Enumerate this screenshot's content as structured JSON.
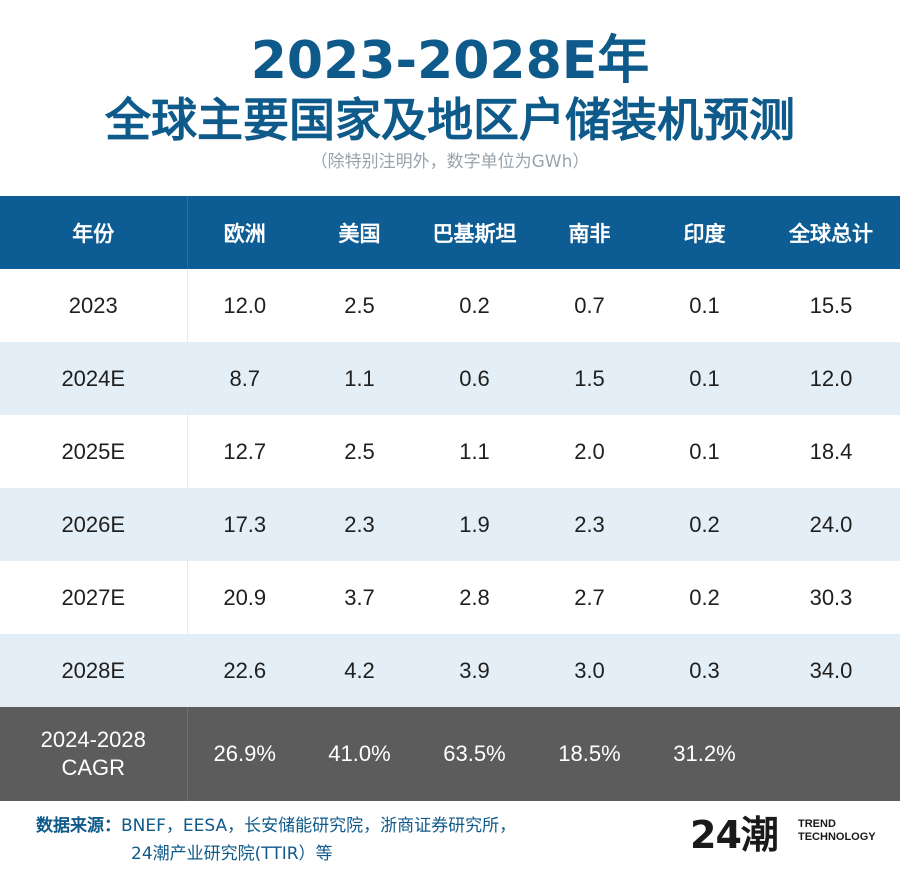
{
  "title_line1": "2023-2028E年",
  "title_line2": "全球主要国家及地区户储装机预测",
  "subtitle": "（除特别注明外，数字单位为GWh）",
  "chart_data": {
    "type": "table",
    "columns": [
      "年份",
      "欧洲",
      "美国",
      "巴基斯坦",
      "南非",
      "印度",
      "全球总计"
    ],
    "rows": [
      [
        "2023",
        "12.0",
        "2.5",
        "0.2",
        "0.7",
        "0.1",
        "15.5"
      ],
      [
        "2024E",
        "8.7",
        "1.1",
        "0.6",
        "1.5",
        "0.1",
        "12.0"
      ],
      [
        "2025E",
        "12.7",
        "2.5",
        "1.1",
        "2.0",
        "0.1",
        "18.4"
      ],
      [
        "2026E",
        "17.3",
        "2.3",
        "1.9",
        "2.3",
        "0.2",
        "24.0"
      ],
      [
        "2027E",
        "20.9",
        "3.7",
        "2.8",
        "2.7",
        "0.2",
        "30.3"
      ],
      [
        "2028E",
        "22.6",
        "4.2",
        "3.9",
        "3.0",
        "0.3",
        "34.0"
      ]
    ],
    "cagr_row": {
      "label_line1": "2024-2028",
      "label_line2": "CAGR",
      "values": [
        "26.9%",
        "41.0%",
        "63.5%",
        "18.5%",
        "31.2%",
        ""
      ]
    }
  },
  "source": {
    "label": "数据来源：",
    "line1": "BNEF，EESA，长安储能研究院，浙商证券研究所，",
    "line2": "24潮产业研究院(TTIR）等"
  },
  "logo": {
    "mark": "24潮",
    "text_line1": "TREND",
    "text_line2": "TECHNOLOGY"
  },
  "colors": {
    "title": "#0e5a8a",
    "header_bg": "#0d5d94",
    "stripe": "#e3eef6",
    "cagr_bg": "#5c5c5c"
  }
}
